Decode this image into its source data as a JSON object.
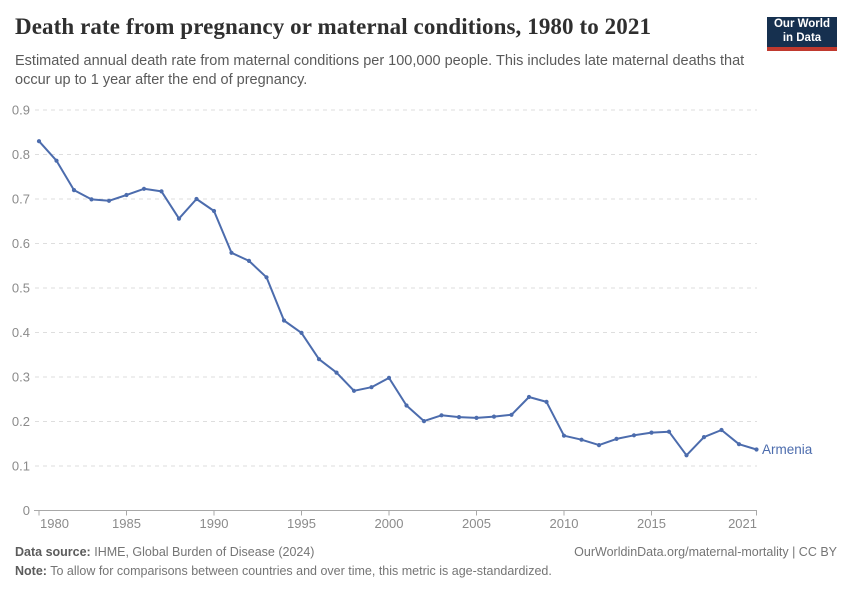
{
  "header": {
    "title": "Death rate from pregnancy or maternal conditions, 1980 to 2021",
    "subtitle": "Estimated annual death rate from maternal conditions per 100,000 people. This includes late maternal deaths that occur up to 1 year after the end of pregnancy.",
    "logo": {
      "line1": "Our World",
      "line2": "in Data"
    }
  },
  "chart_data": {
    "type": "line",
    "title": "Death rate from pregnancy or maternal conditions, 1980 to 2021",
    "xlabel": "",
    "ylabel": "",
    "ylim": [
      0,
      0.9
    ],
    "grid": "horizontal-dashed",
    "legend_position": "end-of-line",
    "x": [
      1980,
      1981,
      1982,
      1983,
      1984,
      1985,
      1986,
      1987,
      1988,
      1989,
      1990,
      1991,
      1992,
      1993,
      1994,
      1995,
      1996,
      1997,
      1998,
      1999,
      2000,
      2001,
      2002,
      2003,
      2004,
      2005,
      2006,
      2007,
      2008,
      2009,
      2010,
      2011,
      2012,
      2013,
      2014,
      2015,
      2016,
      2017,
      2018,
      2019,
      2020,
      2021
    ],
    "series": [
      {
        "name": "Armenia",
        "values": [
          0.83,
          0.786,
          0.72,
          0.699,
          0.696,
          0.709,
          0.723,
          0.717,
          0.656,
          0.7,
          0.673,
          0.579,
          0.561,
          0.524,
          0.427,
          0.399,
          0.34,
          0.31,
          0.269,
          0.277,
          0.298,
          0.236,
          0.201,
          0.214,
          0.21,
          0.208,
          0.211,
          0.215,
          0.255,
          0.244,
          0.168,
          0.159,
          0.147,
          0.161,
          0.169,
          0.175,
          0.177,
          0.124,
          0.165,
          0.181,
          0.149,
          0.137
        ]
      }
    ],
    "yticks": [
      0,
      0.1,
      0.2,
      0.3,
      0.4,
      0.5,
      0.6,
      0.7,
      0.8,
      0.9
    ],
    "xticks": [
      1980,
      1985,
      1990,
      1995,
      2000,
      2005,
      2010,
      2015,
      2021
    ]
  },
  "footer": {
    "source_label": "Data source:",
    "source_text": "IHME, Global Burden of Disease (2024)",
    "credit": "OurWorldinData.org/maternal-mortality | CC BY",
    "note_label": "Note:",
    "note_text": "To allow for comparisons between countries and over time, this metric is age-standardized."
  },
  "colors": {
    "line": "#4c6cad",
    "title": "#2f2f2f",
    "subtitle": "#5a5a5a",
    "axis_label": "#8b8b8b",
    "grid": "#dedede",
    "axis": "#a8a8a8",
    "footer": "#757575",
    "logo_bg": "#16304f",
    "logo_bar": "#c0392e"
  }
}
